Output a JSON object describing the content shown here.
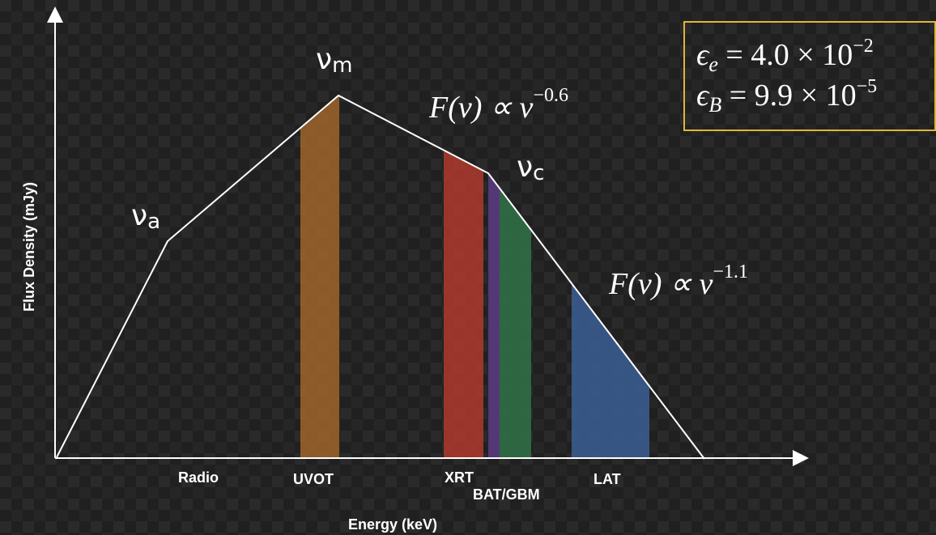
{
  "axes": {
    "y_label": "Flux Density (mJy)",
    "x_label": "Energy (keV)"
  },
  "breaks": [
    {
      "symbol": "ν",
      "subscript": "a"
    },
    {
      "symbol": "ν",
      "subscript": "m"
    },
    {
      "symbol": "ν",
      "subscript": "c"
    }
  ],
  "slopes": [
    {
      "base": "F(ν) ∝ ν",
      "exponent": "−0.6"
    },
    {
      "base": "F(ν) ∝ ν",
      "exponent": "−1.1"
    }
  ],
  "parameters": [
    {
      "symbol": "ϵ",
      "subscript": "e",
      "relation": " = 4.0 × 10",
      "exponent": "−2"
    },
    {
      "symbol": "ϵ",
      "subscript": "B",
      "relation": " = 9.9 × 10",
      "exponent": "−5"
    }
  ],
  "bands": [
    "Radio",
    "UVOT",
    "XRT",
    "BAT/GBM",
    "LAT"
  ]
}
